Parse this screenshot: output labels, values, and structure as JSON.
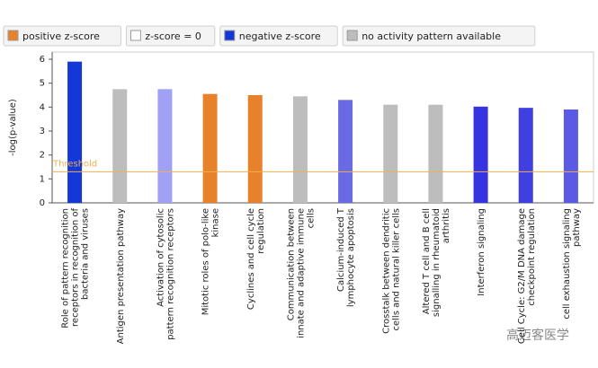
{
  "chart_data": {
    "type": "bar",
    "y_label": "-log(p-value)",
    "legend": [
      {
        "name": "positive z-score",
        "color": "#e8822a"
      },
      {
        "name": "z-score = 0",
        "color": "#ffffff"
      },
      {
        "name": "negative z-score",
        "color": "#1438d8"
      },
      {
        "name": "no activity pattern available",
        "color": "#bdbdbd"
      }
    ],
    "categories": [
      "Role of pattern recognition\nreceptors in recognition of\nbacteria and viruses",
      "Antigen presentation pathway",
      "Activation of cytosolic\npattern recognition receptors",
      "Mitotic roles of polo-like\nkinase",
      "Cyclines and cell cycle\nregulation",
      "Communication between\ninnate and adaptive immune\ncells",
      "Calcium-induced T\nlymphocyte apoptosis",
      "Crosstalk between dendritic\ncells and natural killer cells",
      "Altered T cell and B cell\nsignalling in rheumatoid\narthritis",
      "Interferon signaling",
      "Cell Cycle: G2/M DNA damage\ncheckpoint regulation",
      "cell exhaustion signaling\npathway"
    ],
    "values": [
      5.9,
      4.75,
      4.75,
      4.55,
      4.5,
      4.45,
      4.3,
      4.1,
      4.1,
      4.02,
      3.97,
      3.9
    ],
    "colors": [
      "#1438d8",
      "#bdbdbd",
      "#a0a0f4",
      "#e8822a",
      "#e8822a",
      "#bdbdbd",
      "#6a6ae4",
      "#bdbdbd",
      "#bdbdbd",
      "#3434e0",
      "#4040e0",
      "#5a5ae4"
    ],
    "threshold": {
      "label": "Threshold",
      "value": 1.3,
      "color": "#f0b050"
    },
    "ylim": [
      0,
      6.3
    ],
    "yticks": [
      0,
      1,
      2,
      3,
      4,
      5,
      6
    ],
    "watermark": "高迈客医学"
  }
}
